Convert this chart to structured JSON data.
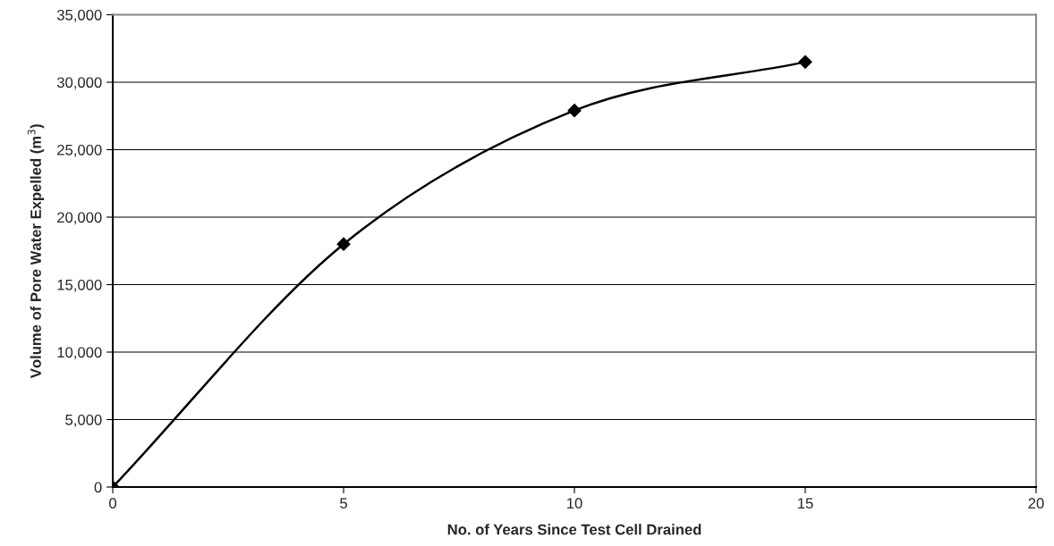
{
  "chart_data": {
    "type": "line",
    "xlabel": "No. of Years Since Test Cell Drained",
    "ylabel": "Volume of Pore Water Expelled (m$^{3}$)",
    "x": [
      0,
      5,
      10,
      15
    ],
    "series": [
      {
        "color": "#000000",
        "values": [
          0,
          18000,
          27900,
          31500
        ]
      }
    ],
    "xlim": [
      0,
      20
    ],
    "xticks": [
      0,
      5,
      10,
      15,
      20
    ],
    "ylim": [
      0,
      35000
    ],
    "yticks": [
      {
        "value": 0,
        "label": "0"
      },
      {
        "value": 5000,
        "label": "5,000"
      },
      {
        "value": 10000,
        "label": "10,000"
      },
      {
        "value": 15000,
        "label": "15,000"
      },
      {
        "value": 20000,
        "label": "20,000"
      },
      {
        "value": 25000,
        "label": "25,000"
      },
      {
        "value": 30000,
        "label": "30,000"
      },
      {
        "value": 35000,
        "label": "35,000"
      }
    ],
    "grid": "y",
    "marker": "diamond",
    "line_style": "solid"
  }
}
